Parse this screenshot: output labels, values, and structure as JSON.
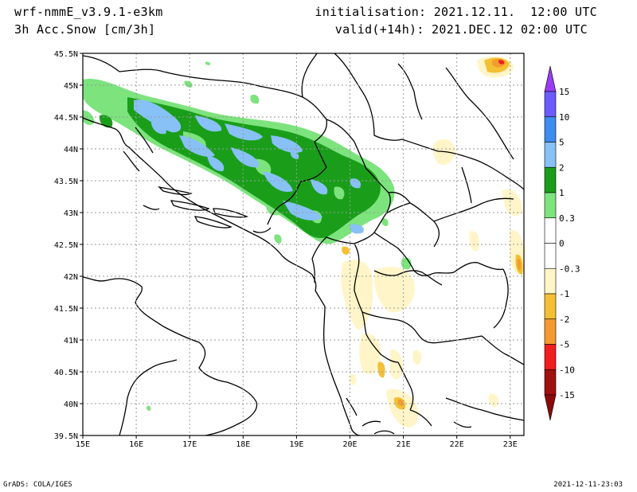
{
  "header": {
    "model": "wrf-nmmE_v3.9.1-e3km",
    "field": "3h Acc.Snow [cm/3h]",
    "init": "initialisation: 2021.12.11.  12:00 UTC",
    "valid": "valid(+14h): 2021.DEC.12 02:00 UTC"
  },
  "footer": {
    "left": "GrADS: COLA/IGES",
    "right": "2021-12-11-23:03"
  },
  "axes": {
    "lon_labels": [
      "15E",
      "16E",
      "17E",
      "18E",
      "19E",
      "20E",
      "21E",
      "22E",
      "23E"
    ],
    "lat_labels": [
      "45.5N",
      "45N",
      "44.5N",
      "44N",
      "43.5N",
      "43N",
      "42.5N",
      "42N",
      "41.5N",
      "41N",
      "40.5N",
      "40N",
      "39.5N"
    ]
  },
  "colorbar": {
    "labels": [
      "15",
      "10",
      "5",
      "2",
      "1",
      "0.3",
      "0",
      "-0.3",
      "-1",
      "-2",
      "-5",
      "-10",
      "-15"
    ],
    "colors": [
      "#6a5cff",
      "#3d8cf0",
      "#87c1f5",
      "#1a9e1a",
      "#7de37d",
      "#ffffff",
      "#ffffff",
      "#fff5c8",
      "#f4c033",
      "#f49a2e",
      "#f01e1e",
      "#a01010"
    ],
    "top_color": "#9b3cf2",
    "bottom_color": "#8b0a0a"
  },
  "colors": {
    "light_green": "#7de37d",
    "green": "#1a9e1a",
    "light_blue": "#87c1f5",
    "cream": "#fff5c8",
    "yellow": "#f4c033",
    "orange": "#f49a2e",
    "red": "#f01e1e"
  }
}
